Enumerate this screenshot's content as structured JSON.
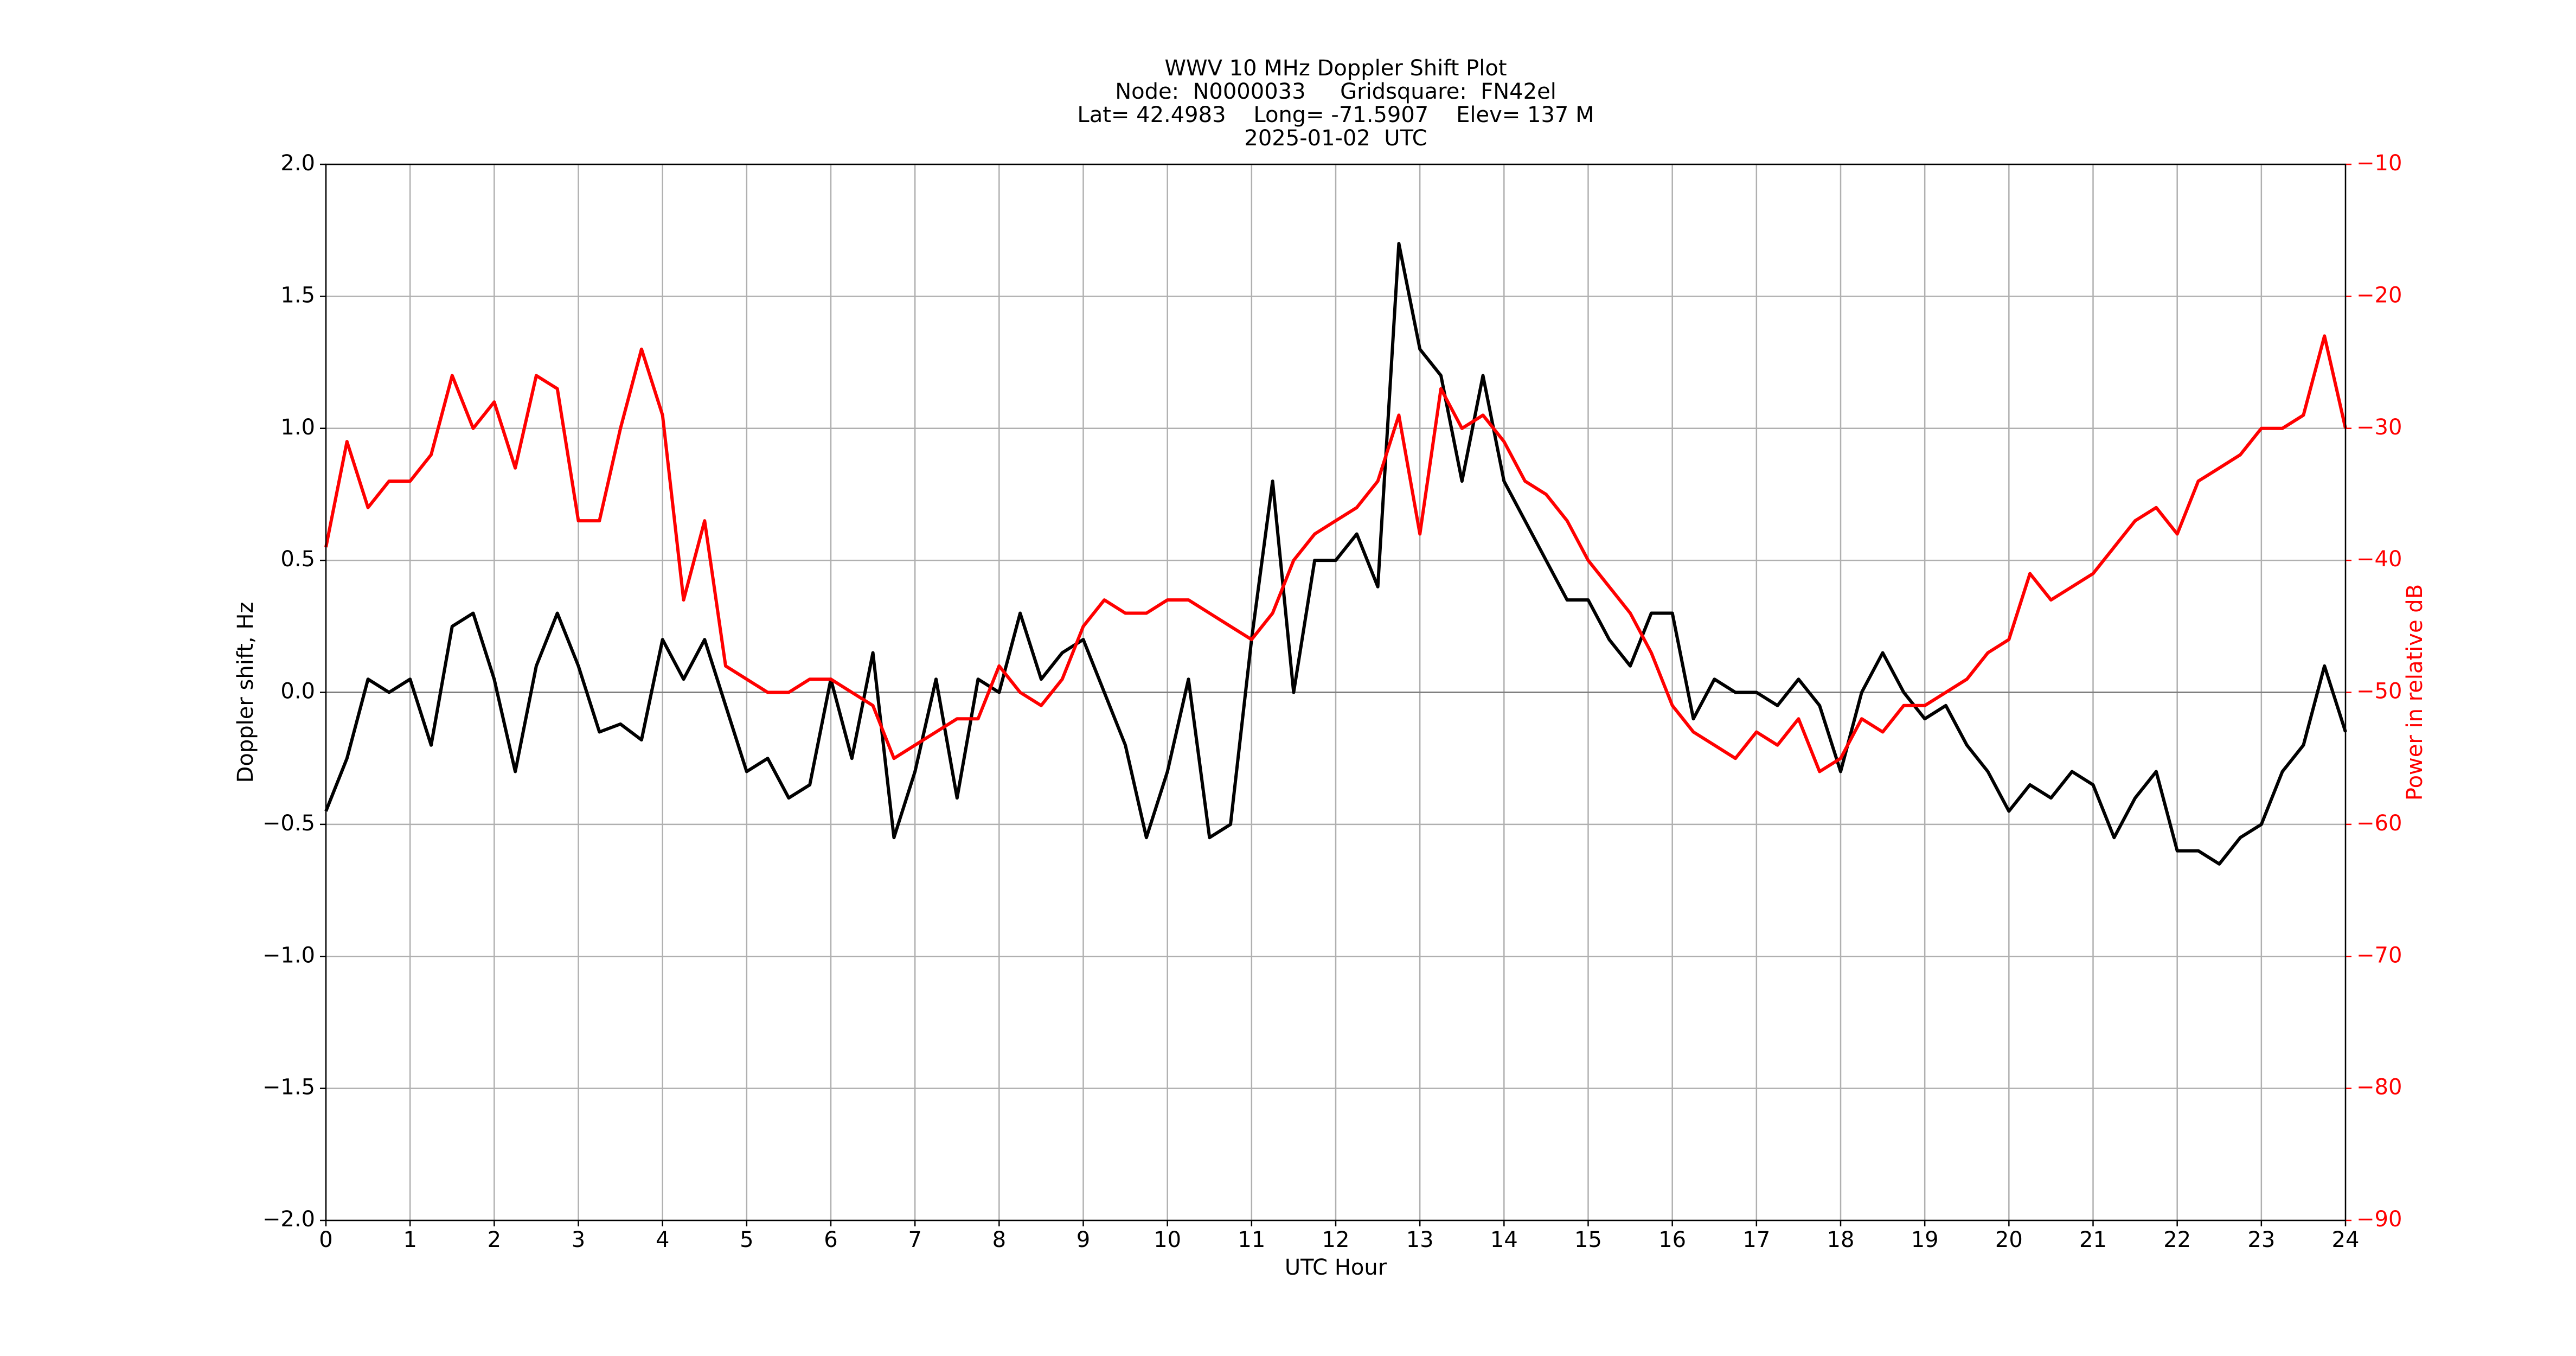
{
  "chart_data": {
    "type": "line",
    "title": [
      "WWV 10 MHz Doppler Shift Plot",
      "Node:  N0000033     Gridsquare:  FN42el",
      "Lat= 42.4983    Long= -71.5907    Elev= 137 M",
      "2025-01-02  UTC"
    ],
    "xlabel": "UTC Hour",
    "ylabel": "Doppler shift, Hz",
    "y2label": "Power in relative dB",
    "x": [
      0,
      0.25,
      0.5,
      0.75,
      1,
      1.25,
      1.5,
      1.75,
      2,
      2.25,
      2.5,
      2.75,
      3,
      3.25,
      3.5,
      3.75,
      4,
      4.25,
      4.5,
      4.75,
      5,
      5.25,
      5.5,
      5.75,
      6,
      6.25,
      6.5,
      6.75,
      7,
      7.25,
      7.5,
      7.75,
      8,
      8.25,
      8.5,
      8.75,
      9,
      9.25,
      9.5,
      9.75,
      10,
      10.25,
      10.5,
      10.75,
      11,
      11.25,
      11.5,
      11.75,
      12,
      12.25,
      12.5,
      12.75,
      13,
      13.25,
      13.5,
      13.75,
      14,
      14.25,
      14.5,
      14.75,
      15,
      15.25,
      15.5,
      15.75,
      16,
      16.25,
      16.5,
      16.75,
      17,
      17.25,
      17.5,
      17.75,
      18,
      18.25,
      18.5,
      18.75,
      19,
      19.25,
      19.5,
      19.75,
      20,
      20.25,
      20.5,
      20.75,
      21,
      21.25,
      21.5,
      21.75,
      22,
      22.25,
      22.5,
      22.75,
      23,
      23.25,
      23.5,
      23.75,
      24
    ],
    "series": [
      {
        "color": "#000000",
        "axis": "y",
        "values": [
          -0.45,
          -0.25,
          0.05,
          0.0,
          0.05,
          -0.2,
          0.25,
          0.3,
          0.05,
          -0.3,
          0.1,
          0.3,
          0.1,
          -0.15,
          -0.12,
          -0.18,
          0.2,
          0.05,
          0.2,
          -0.05,
          -0.3,
          -0.25,
          -0.4,
          -0.35,
          0.05,
          -0.25,
          0.15,
          -0.55,
          -0.3,
          0.05,
          -0.4,
          0.05,
          0.0,
          0.3,
          0.05,
          0.15,
          0.2,
          0.0,
          -0.2,
          -0.55,
          -0.3,
          0.05,
          -0.55,
          -0.5,
          0.2,
          0.8,
          0.0,
          0.5,
          0.5,
          0.6,
          0.4,
          1.7,
          1.3,
          1.2,
          0.8,
          1.2,
          0.8,
          0.65,
          0.5,
          0.35,
          0.35,
          0.2,
          0.1,
          0.3,
          0.3,
          -0.1,
          0.05,
          0.0,
          0.0,
          -0.05,
          0.05,
          -0.05,
          -0.3,
          0.0,
          0.15,
          0.0,
          -0.1,
          -0.05,
          -0.2,
          -0.3,
          -0.45,
          -0.35,
          -0.4,
          -0.3,
          -0.35,
          -0.55,
          -0.4,
          -0.3,
          -0.6,
          -0.6,
          -0.65,
          -0.55,
          -0.5,
          -0.3,
          -0.2,
          0.1,
          -0.15
        ]
      },
      {
        "color": "#ff0000",
        "axis": "y2",
        "values": [
          -39,
          -31,
          -36,
          -34,
          -34,
          -32,
          -26,
          -30,
          -28,
          -33,
          -26,
          -27,
          -37,
          -37,
          -30,
          -24,
          -29,
          -43,
          -37,
          -48,
          -49,
          -50,
          -50,
          -49,
          -49,
          -50,
          -51,
          -55,
          -54,
          -53,
          -52,
          -52,
          -48,
          -50,
          -51,
          -49,
          -45,
          -43,
          -44,
          -44,
          -43,
          -43,
          -44,
          -45,
          -46,
          -44,
          -40,
          -38,
          -37,
          -36,
          -34,
          -29,
          -38,
          -27,
          -30,
          -29,
          -31,
          -34,
          -35,
          -37,
          -40,
          -42,
          -44,
          -47,
          -51,
          -53,
          -54,
          -55,
          -53,
          -54,
          -52,
          -56,
          -55,
          -52,
          -53,
          -51,
          -51,
          -50,
          -49,
          -47,
          -46,
          -41,
          -43,
          -42,
          -41,
          -39,
          -37,
          -36,
          -38,
          -34,
          -33,
          -32,
          -30,
          -30,
          -29,
          -23,
          -30
        ]
      }
    ],
    "xlim": [
      0,
      24
    ],
    "xticks": [
      0,
      1,
      2,
      3,
      4,
      5,
      6,
      7,
      8,
      9,
      10,
      11,
      12,
      13,
      14,
      15,
      16,
      17,
      18,
      19,
      20,
      21,
      22,
      23,
      24
    ],
    "ylim": [
      -2,
      2
    ],
    "yticks": [
      {
        "value": -2,
        "label": "−2.0"
      },
      {
        "value": -1.5,
        "label": "−1.5"
      },
      {
        "value": -1,
        "label": "−1.0"
      },
      {
        "value": -0.5,
        "label": "−0.5"
      },
      {
        "value": 0,
        "label": "0.0"
      },
      0.5,
      {
        "value": 1,
        "label": "1.0"
      },
      1.5,
      {
        "value": 2,
        "label": "2.0"
      }
    ],
    "y2lim": [
      -90,
      -10
    ],
    "y2ticks": [
      {
        "value": -90,
        "label": "−90"
      },
      {
        "value": -80,
        "label": "−80"
      },
      {
        "value": -70,
        "label": "−70"
      },
      {
        "value": -60,
        "label": "−60"
      },
      {
        "value": -50,
        "label": "−50"
      },
      {
        "value": -40,
        "label": "−40"
      },
      {
        "value": -30,
        "label": "−30"
      },
      {
        "value": -20,
        "label": "−20"
      },
      {
        "value": -10,
        "label": "−10"
      }
    ],
    "y2color": "#ff0000",
    "axhline": 0,
    "grid": true
  }
}
